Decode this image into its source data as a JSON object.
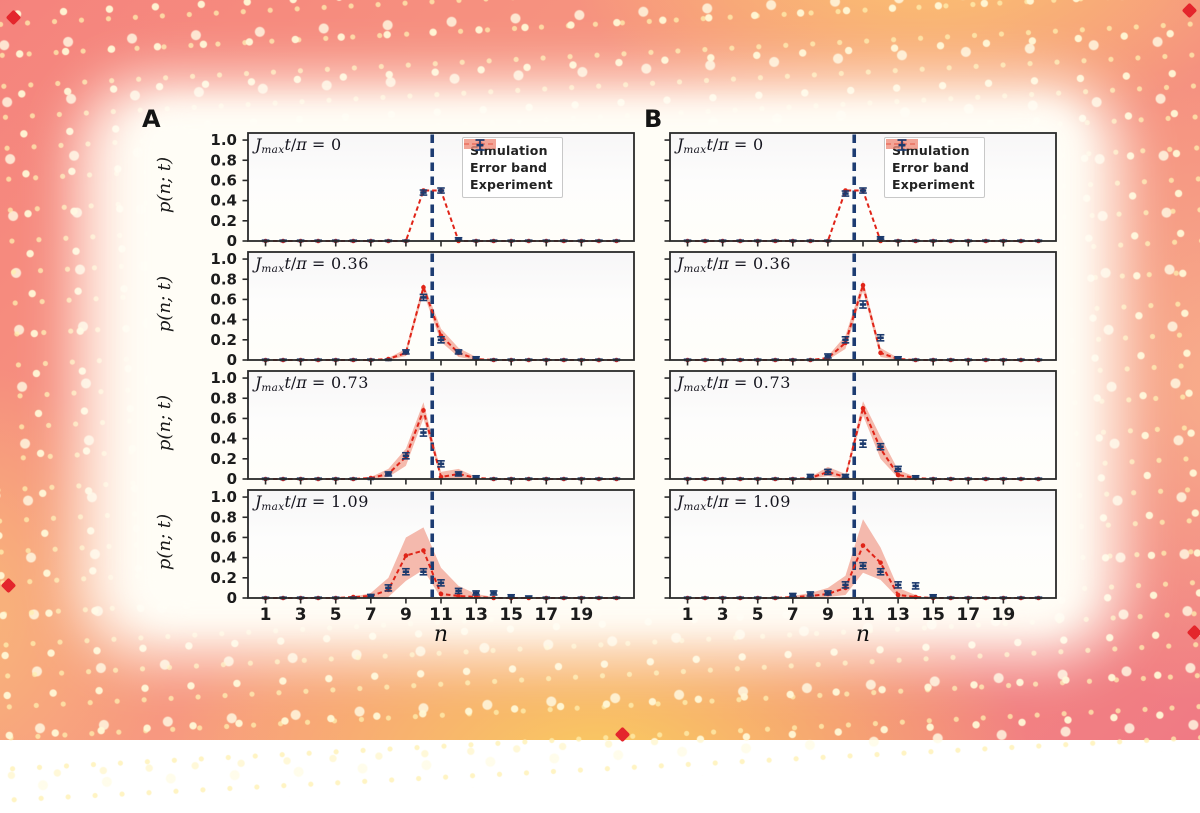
{
  "figure": {
    "panel_labels": [
      "A",
      "B"
    ],
    "ylabel": "p(n; t)",
    "xlabel": "n",
    "yticks": [
      "1.0",
      "0.8",
      "0.6",
      "0.4",
      "0.2",
      "0"
    ],
    "ytick_values": [
      1.0,
      0.8,
      0.6,
      0.4,
      0.2,
      0
    ],
    "xticks": [
      "1",
      "3",
      "5",
      "7",
      "9",
      "11",
      "13",
      "15",
      "17",
      "19"
    ],
    "xtick_values": [
      1,
      3,
      5,
      7,
      9,
      11,
      13,
      15,
      17,
      19
    ],
    "title_parts": {
      "J": "J",
      "sub": "max",
      "t": "t",
      "slash": "/",
      "pi": "π",
      "eq": "="
    },
    "legend": {
      "items": [
        {
          "type": "sim",
          "label": "Simulation"
        },
        {
          "type": "band",
          "label": "Error band"
        },
        {
          "type": "exp",
          "label": "Experiment"
        }
      ]
    },
    "colors": {
      "simulation": "#e02418",
      "error_band": "#ef8f7d",
      "experiment": "#1c3a6d",
      "vline": "#1d3c72",
      "frame": "#2a2a2a",
      "tick_text": "#1c1c1c",
      "corner_accent": "#e4262c"
    }
  },
  "chart_data": [
    {
      "type": "line",
      "panel": "A",
      "row": 0,
      "time_value": "0",
      "title": "Jmax t/π = 0",
      "xlabel": "n",
      "ylabel": "p(n; t)",
      "xlim": [
        0,
        22
      ],
      "ylim": [
        0,
        1.07
      ],
      "vline_n": 10.5,
      "sim": [
        [
          10,
          0.5
        ],
        [
          11,
          0.5
        ]
      ],
      "band": [],
      "exp": [
        [
          10,
          0.48,
          0.025
        ],
        [
          11,
          0.5,
          0.025
        ],
        [
          12,
          0.02,
          0.012
        ]
      ],
      "show_legend": true,
      "show_xticklabels": false
    },
    {
      "type": "line",
      "panel": "A",
      "row": 1,
      "time_value": "0.36",
      "title": "Jmax t/π = 0.36",
      "xlim": [
        0,
        22
      ],
      "ylim": [
        0,
        1.07
      ],
      "vline_n": 10.5,
      "sim": [
        [
          8,
          0.01
        ],
        [
          9,
          0.07
        ],
        [
          10,
          0.72
        ],
        [
          11,
          0.24
        ],
        [
          12,
          0.07
        ],
        [
          13,
          0.01
        ]
      ],
      "band": [
        [
          8,
          0,
          0.02
        ],
        [
          9,
          0.04,
          0.11
        ],
        [
          10,
          0.66,
          0.76
        ],
        [
          11,
          0.18,
          0.31
        ],
        [
          12,
          0.03,
          0.12
        ],
        [
          13,
          0,
          0.03
        ]
      ],
      "exp": [
        [
          9,
          0.08,
          0.02
        ],
        [
          10,
          0.62,
          0.03
        ],
        [
          11,
          0.2,
          0.03
        ],
        [
          12,
          0.08,
          0.02
        ],
        [
          13,
          0.02,
          0.012
        ]
      ],
      "show_legend": false,
      "show_xticklabels": false
    },
    {
      "type": "line",
      "panel": "A",
      "row": 2,
      "time_value": "0.73",
      "title": "Jmax t/π = 0.73",
      "xlim": [
        0,
        22
      ],
      "ylim": [
        0,
        1.07
      ],
      "vline_n": 10.5,
      "sim": [
        [
          7,
          0.01
        ],
        [
          8,
          0.05
        ],
        [
          9,
          0.22
        ],
        [
          10,
          0.68
        ],
        [
          11,
          0.02
        ],
        [
          12,
          0.05
        ],
        [
          13,
          0.01
        ]
      ],
      "band": [
        [
          7,
          0,
          0.02
        ],
        [
          8,
          0.02,
          0.1
        ],
        [
          9,
          0.13,
          0.3
        ],
        [
          10,
          0.6,
          0.76
        ],
        [
          11,
          0,
          0.07
        ],
        [
          12,
          0.01,
          0.1
        ],
        [
          13,
          0,
          0.02
        ]
      ],
      "exp": [
        [
          8,
          0.05,
          0.02
        ],
        [
          9,
          0.23,
          0.03
        ],
        [
          10,
          0.46,
          0.035
        ],
        [
          11,
          0.15,
          0.03
        ],
        [
          12,
          0.05,
          0.02
        ],
        [
          13,
          0.02,
          0.012
        ]
      ],
      "show_legend": false,
      "show_xticklabels": false
    },
    {
      "type": "line",
      "panel": "A",
      "row": 3,
      "time_value": "1.09",
      "title": "Jmax t/π = 1.09",
      "xlim": [
        0,
        22
      ],
      "ylim": [
        0,
        1.07
      ],
      "vline_n": 10.5,
      "sim": [
        [
          6,
          0.01
        ],
        [
          7,
          0.02
        ],
        [
          8,
          0.08
        ],
        [
          9,
          0.42
        ],
        [
          10,
          0.47
        ],
        [
          11,
          0.04
        ],
        [
          12,
          0.02
        ],
        [
          13,
          0.01
        ]
      ],
      "band": [
        [
          6,
          0,
          0.01
        ],
        [
          7,
          0,
          0.05
        ],
        [
          8,
          0.01,
          0.2
        ],
        [
          9,
          0.17,
          0.6
        ],
        [
          10,
          0.28,
          0.7
        ],
        [
          11,
          0,
          0.3
        ],
        [
          12,
          0,
          0.12
        ],
        [
          13,
          0,
          0.04
        ],
        [
          14,
          0,
          0.01
        ]
      ],
      "exp": [
        [
          7,
          0.02,
          0.015
        ],
        [
          8,
          0.1,
          0.03
        ],
        [
          9,
          0.26,
          0.03
        ],
        [
          10,
          0.26,
          0.03
        ],
        [
          11,
          0.15,
          0.03
        ],
        [
          12,
          0.07,
          0.025
        ],
        [
          13,
          0.05,
          0.02
        ],
        [
          14,
          0.05,
          0.02
        ],
        [
          15,
          0.02,
          0.012
        ],
        [
          16,
          0.01,
          0.01
        ]
      ],
      "show_legend": false,
      "show_xticklabels": true
    },
    {
      "type": "line",
      "panel": "B",
      "row": 0,
      "time_value": "0",
      "title": "Jmax t/π = 0",
      "xlim": [
        0,
        22
      ],
      "ylim": [
        0,
        1.07
      ],
      "vline_n": 10.5,
      "sim": [
        [
          10,
          0.5
        ],
        [
          11,
          0.5
        ]
      ],
      "band": [],
      "exp": [
        [
          10,
          0.47,
          0.025
        ],
        [
          11,
          0.5,
          0.025
        ],
        [
          12,
          0.03,
          0.012
        ]
      ],
      "show_legend": true,
      "show_xticklabels": false
    },
    {
      "type": "line",
      "panel": "B",
      "row": 1,
      "time_value": "0.36",
      "title": "Jmax t/π = 0.36",
      "xlim": [
        0,
        22
      ],
      "ylim": [
        0,
        1.07
      ],
      "vline_n": 10.5,
      "sim": [
        [
          9,
          0.02
        ],
        [
          10,
          0.17
        ],
        [
          11,
          0.74
        ],
        [
          12,
          0.07
        ],
        [
          13,
          0.01
        ]
      ],
      "band": [
        [
          9,
          0,
          0.04
        ],
        [
          10,
          0.11,
          0.24
        ],
        [
          11,
          0.68,
          0.79
        ],
        [
          12,
          0.03,
          0.12
        ],
        [
          13,
          0,
          0.02
        ]
      ],
      "exp": [
        [
          9,
          0.04,
          0.02
        ],
        [
          10,
          0.2,
          0.03
        ],
        [
          11,
          0.55,
          0.035
        ],
        [
          12,
          0.22,
          0.03
        ],
        [
          13,
          0.02,
          0.012
        ]
      ],
      "show_legend": false,
      "show_xticklabels": false
    },
    {
      "type": "line",
      "panel": "B",
      "row": 2,
      "time_value": "0.73",
      "title": "Jmax t/π = 0.73",
      "xlim": [
        0,
        22
      ],
      "ylim": [
        0,
        1.07
      ],
      "vline_n": 10.5,
      "sim": [
        [
          8,
          0.01
        ],
        [
          9,
          0.07
        ],
        [
          10,
          0.02
        ],
        [
          11,
          0.7
        ],
        [
          12,
          0.3
        ],
        [
          13,
          0.04
        ],
        [
          14,
          0.01
        ]
      ],
      "band": [
        [
          8,
          0,
          0.02
        ],
        [
          9,
          0.03,
          0.12
        ],
        [
          10,
          0,
          0.05
        ],
        [
          11,
          0.63,
          0.77
        ],
        [
          12,
          0.2,
          0.42
        ],
        [
          13,
          0.01,
          0.09
        ],
        [
          14,
          0,
          0.02
        ]
      ],
      "exp": [
        [
          8,
          0.03,
          0.015
        ],
        [
          9,
          0.07,
          0.025
        ],
        [
          10,
          0.03,
          0.015
        ],
        [
          11,
          0.35,
          0.035
        ],
        [
          12,
          0.32,
          0.03
        ],
        [
          13,
          0.1,
          0.025
        ],
        [
          14,
          0.02,
          0.012
        ]
      ],
      "show_legend": false,
      "show_xticklabels": false
    },
    {
      "type": "line",
      "panel": "B",
      "row": 3,
      "time_value": "1.09",
      "title": "Jmax t/π = 1.09",
      "xlim": [
        0,
        22
      ],
      "ylim": [
        0,
        1.07
      ],
      "vline_n": 10.5,
      "sim": [
        [
          7,
          0.01
        ],
        [
          8,
          0.02
        ],
        [
          9,
          0.04
        ],
        [
          10,
          0.1
        ],
        [
          11,
          0.52
        ],
        [
          12,
          0.35
        ],
        [
          13,
          0.03
        ],
        [
          14,
          0.01
        ]
      ],
      "band": [
        [
          7,
          0,
          0.02
        ],
        [
          8,
          0,
          0.05
        ],
        [
          9,
          0.01,
          0.1
        ],
        [
          10,
          0.03,
          0.22
        ],
        [
          11,
          0.25,
          0.78
        ],
        [
          12,
          0.18,
          0.5
        ],
        [
          13,
          0,
          0.1
        ],
        [
          14,
          0,
          0.03
        ]
      ],
      "exp": [
        [
          7,
          0.03,
          0.015
        ],
        [
          8,
          0.04,
          0.02
        ],
        [
          9,
          0.05,
          0.02
        ],
        [
          10,
          0.13,
          0.03
        ],
        [
          11,
          0.32,
          0.03
        ],
        [
          12,
          0.26,
          0.03
        ],
        [
          13,
          0.13,
          0.03
        ],
        [
          14,
          0.12,
          0.03
        ],
        [
          15,
          0.02,
          0.012
        ]
      ],
      "show_legend": false,
      "show_xticklabels": true
    }
  ]
}
